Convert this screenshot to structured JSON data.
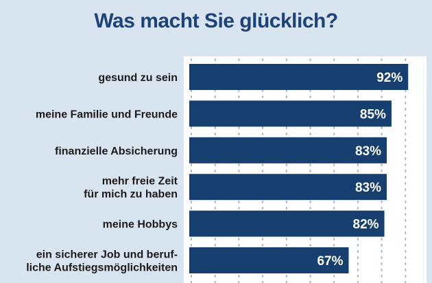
{
  "chart_data": {
    "type": "bar",
    "orientation": "horizontal",
    "title": "Was macht Sie glücklich?",
    "categories": [
      "gesund zu sein",
      "meine Familie und Freunde",
      "finanzielle Absicherung",
      "mehr freie Zeit\nfür mich zu haben",
      "meine Hobbys",
      "ein sicherer Job und beruf-\nliche Aufstiegsmöglichkeiten"
    ],
    "values": [
      92,
      85,
      83,
      83,
      82,
      67
    ],
    "value_labels": [
      "92%",
      "85%",
      "83%",
      "83%",
      "82%",
      "67%"
    ],
    "unit": "%",
    "xlim": [
      0,
      100
    ],
    "grid": true,
    "legend": "none",
    "colors": {
      "background": "#d9e4f1",
      "plot_background": "#ffffff",
      "bar": "#163f70",
      "grid": "#9fb3cf",
      "title": "#1b4379",
      "bar_label": "#ffffff",
      "category_label": "#1a1a1a"
    }
  }
}
